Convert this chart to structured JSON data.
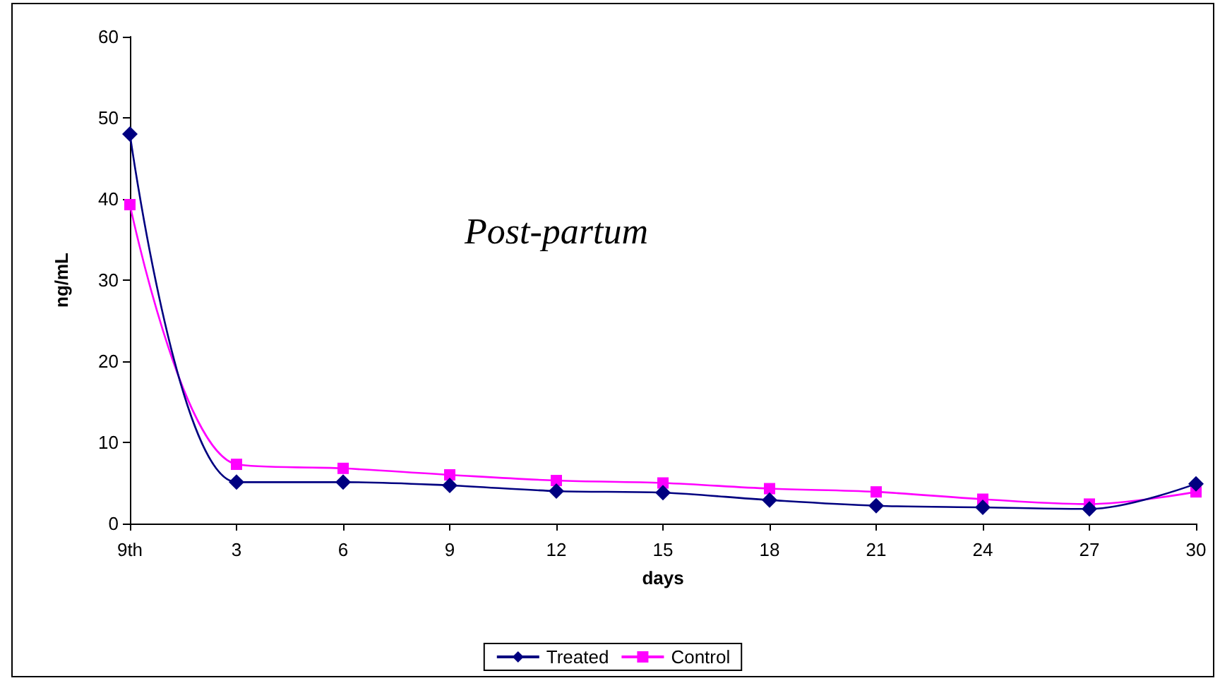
{
  "chart_data": {
    "type": "line",
    "xlabel": "days",
    "ylabel": "ng/mL",
    "annotations": [
      "Post-partum"
    ],
    "categories": [
      "9th",
      "3",
      "6",
      "9",
      "12",
      "15",
      "18",
      "21",
      "24",
      "27",
      "30"
    ],
    "series": [
      {
        "name": "Treated",
        "color": "#000080",
        "marker": "diamond",
        "values": [
          48,
          5.1,
          5.1,
          4.7,
          4.0,
          3.8,
          2.9,
          2.2,
          2.0,
          1.8,
          4.9
        ]
      },
      {
        "name": "Control",
        "color": "#ff00ff",
        "marker": "square",
        "values": [
          39.3,
          7.3,
          6.8,
          6.0,
          5.3,
          5.0,
          4.3,
          3.9,
          3.0,
          2.4,
          3.9
        ]
      }
    ],
    "ylim": [
      0,
      60
    ],
    "yticks": [
      0,
      10,
      20,
      30,
      40,
      50,
      60
    ],
    "grid": false,
    "legend": "bottom"
  }
}
